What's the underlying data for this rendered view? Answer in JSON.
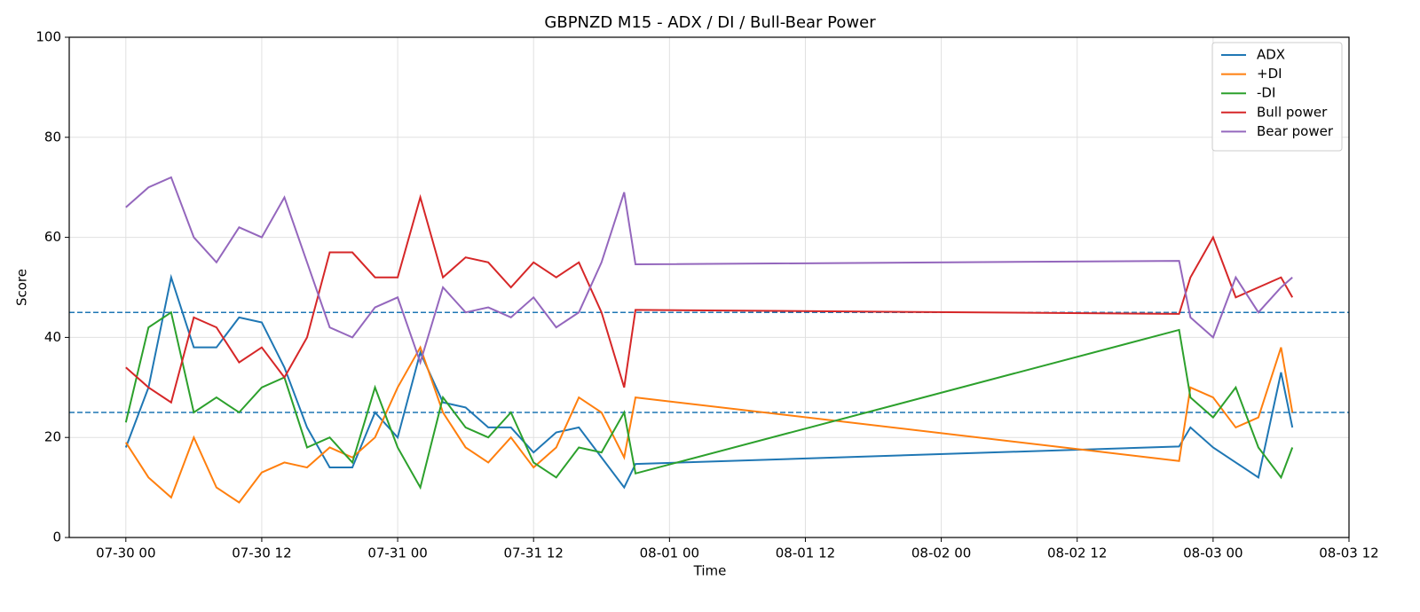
{
  "chart_data": {
    "type": "line",
    "title": "GBPNZD M15 - ADX / DI / Bull-Bear Power",
    "x_label": "Time",
    "y_label": "Score",
    "x": [
      "07-30 00",
      "07-30 02",
      "07-30 04",
      "07-30 06",
      "07-30 08",
      "07-30 10",
      "07-30 12",
      "07-30 14",
      "07-30 16",
      "07-30 18",
      "07-30 20",
      "07-30 22",
      "07-31 00",
      "07-31 02",
      "07-31 04",
      "07-31 06",
      "07-31 08",
      "07-31 10",
      "07-31 12",
      "07-31 14",
      "07-31 16",
      "07-31 18",
      "07-31 20",
      "07-31 21",
      "08-02 21",
      "08-02 22",
      "08-03 00",
      "08-03 02",
      "08-03 04",
      "08-03 06",
      "08-03 07"
    ],
    "series": [
      {
        "name": "ADX",
        "color": "#1f77b4",
        "values": [
          18,
          30,
          52,
          38,
          38,
          44,
          43,
          34,
          22,
          14,
          14,
          25,
          20,
          37,
          27,
          26,
          22,
          22,
          17,
          21,
          22,
          16,
          10,
          14.7,
          18.2,
          22,
          18,
          15,
          12,
          33,
          22
        ]
      },
      {
        "name": "+DI",
        "color": "#ff7f0e",
        "values": [
          19,
          12,
          8,
          20,
          10,
          7,
          13,
          15,
          14,
          18,
          16,
          20,
          30,
          38,
          25,
          18,
          15,
          20,
          14,
          18,
          28,
          25,
          16,
          28,
          15.3,
          30,
          28,
          22,
          24,
          38,
          25
        ]
      },
      {
        "name": "-DI",
        "color": "#2ca02c",
        "values": [
          23,
          42,
          45,
          25,
          28,
          25,
          30,
          32,
          18,
          20,
          15,
          30,
          18,
          10,
          28,
          22,
          20,
          25,
          15,
          12,
          18,
          17,
          25,
          12.8,
          41.5,
          28,
          24,
          30,
          18,
          12,
          18
        ]
      },
      {
        "name": "Bull power",
        "color": "#d62728",
        "values": [
          34,
          30,
          27,
          44,
          42,
          35,
          38,
          32,
          40,
          57,
          57,
          52,
          52,
          68,
          52,
          56,
          55,
          50,
          55,
          52,
          55,
          45,
          30,
          45.5,
          44.7,
          52,
          60,
          48,
          50,
          52,
          48
        ]
      },
      {
        "name": "Bear power",
        "color": "#9467bd",
        "values": [
          66,
          70,
          72,
          60,
          55,
          62,
          60,
          68,
          55,
          42,
          40,
          46,
          48,
          35,
          50,
          45,
          46,
          44,
          48,
          42,
          45,
          55,
          69,
          54.6,
          55.3,
          44,
          40,
          52,
          45,
          50,
          52
        ]
      }
    ],
    "hlines": [
      45,
      25
    ],
    "hline_color": "#1f77b4",
    "xlim": [
      "07-29 19",
      "08-03 12"
    ],
    "xticks": [
      "07-30 00",
      "07-30 12",
      "07-31 00",
      "07-31 12",
      "08-01 00",
      "08-01 12",
      "08-02 00",
      "08-02 12",
      "08-03 00",
      "08-03 12"
    ],
    "ylim": [
      0,
      100
    ],
    "yticks": [
      0,
      20,
      40,
      60,
      80,
      100
    ],
    "grid": true,
    "legend": "upper right"
  }
}
